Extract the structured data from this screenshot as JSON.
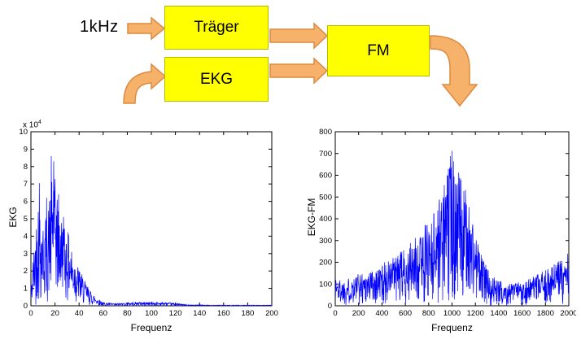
{
  "diagram": {
    "input_label": "1kHz",
    "blocks": [
      {
        "id": "traeger",
        "label": "Träger"
      },
      {
        "id": "ekg",
        "label": "EKG"
      },
      {
        "id": "fm",
        "label": "FM"
      }
    ],
    "colors": {
      "block_fill": "#FFFF00",
      "block_border": "#B9B900",
      "arrow_fill": "#F6B26B",
      "arrow_border": "#DD8A3C"
    }
  },
  "chart_data": [
    {
      "type": "line",
      "subtype": "fft-magnitude-spectrum",
      "title": "",
      "xlabel": "Frequenz",
      "ylabel": "EKG",
      "y_multiplier_base": "x 10",
      "y_multiplier_exp": "4",
      "xlim": [
        0,
        200
      ],
      "ylim": [
        0,
        10
      ],
      "xticks": [
        0,
        20,
        40,
        60,
        80,
        100,
        120,
        140,
        160,
        180,
        200
      ],
      "yticks": [
        0,
        1,
        2,
        3,
        4,
        5,
        6,
        7,
        8,
        9,
        10
      ],
      "grid": false,
      "legend": null,
      "line_color": "#0000FF",
      "envelope_x": [
        0,
        2,
        4,
        6,
        8,
        10,
        14,
        18,
        22,
        26,
        30,
        35,
        40,
        45,
        50,
        55,
        60,
        70,
        80,
        90,
        100,
        110,
        120,
        130,
        140,
        160,
        180,
        200
      ],
      "envelope_y": [
        0.8,
        3.0,
        4.5,
        6.5,
        5.5,
        4.8,
        5.5,
        8.0,
        6.5,
        5.0,
        4.5,
        3.0,
        2.2,
        1.4,
        0.8,
        0.45,
        0.2,
        0.12,
        0.18,
        0.22,
        0.22,
        0.2,
        0.15,
        0.06,
        0.05,
        0.04,
        0.04,
        0.04
      ],
      "peaks": [
        {
          "x": 7,
          "y": 7.05
        },
        {
          "x": 13,
          "y": 6.2
        },
        {
          "x": 17,
          "y": 8.6
        },
        {
          "x": 19,
          "y": 8.3
        },
        {
          "x": 23,
          "y": 6.4
        },
        {
          "x": 27,
          "y": 5.1
        }
      ]
    },
    {
      "type": "line",
      "subtype": "fft-magnitude-spectrum",
      "title": "",
      "xlabel": "Frequenz",
      "ylabel": "EKG-FM",
      "y_multiplier_base": "",
      "y_multiplier_exp": "",
      "xlim": [
        0,
        2000
      ],
      "ylim": [
        0,
        800
      ],
      "xticks": [
        0,
        200,
        400,
        600,
        800,
        1000,
        1200,
        1400,
        1600,
        1800,
        2000
      ],
      "yticks": [
        0,
        100,
        200,
        300,
        400,
        500,
        600,
        700,
        800
      ],
      "grid": false,
      "legend": null,
      "line_color": "#0000FF",
      "envelope_x": [
        0,
        50,
        100,
        200,
        300,
        400,
        500,
        600,
        700,
        800,
        850,
        900,
        950,
        1000,
        1030,
        1060,
        1100,
        1150,
        1200,
        1250,
        1300,
        1350,
        1400,
        1500,
        1600,
        1700,
        1800,
        1900,
        1950,
        2000
      ],
      "envelope_y": [
        140,
        120,
        125,
        150,
        165,
        195,
        225,
        265,
        320,
        400,
        450,
        520,
        600,
        700,
        660,
        620,
        560,
        470,
        340,
        240,
        180,
        140,
        115,
        105,
        115,
        135,
        165,
        205,
        230,
        255
      ],
      "peaks": [
        {
          "x": 988,
          "y": 688
        },
        {
          "x": 1000,
          "y": 712
        },
        {
          "x": 1012,
          "y": 664
        }
      ]
    }
  ]
}
